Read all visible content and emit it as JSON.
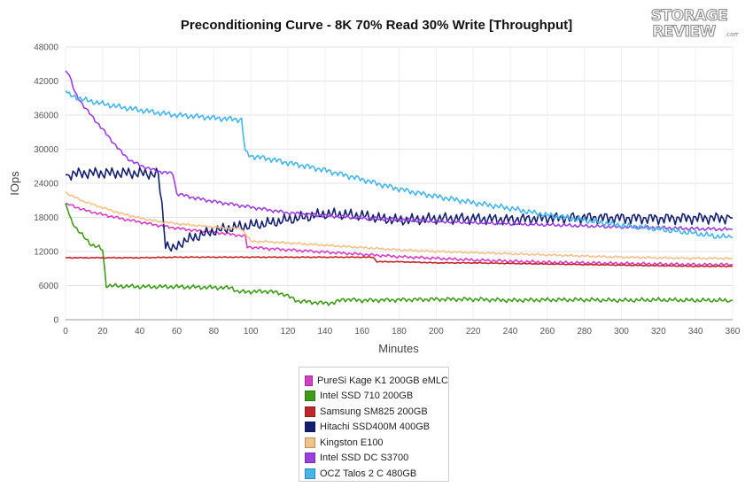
{
  "chart_data": {
    "type": "line",
    "title": "Preconditioning Curve - 8K 70% Read 30% Write [Throughput]",
    "xlabel": "Minutes",
    "ylabel": "IOps",
    "xlim": [
      0,
      360
    ],
    "ylim": [
      0,
      48000
    ],
    "x_ticks": [
      0,
      20,
      40,
      60,
      80,
      100,
      120,
      140,
      160,
      180,
      200,
      220,
      240,
      260,
      280,
      300,
      320,
      340,
      360
    ],
    "y_ticks": [
      0,
      6000,
      12000,
      18000,
      24000,
      30000,
      36000,
      42000,
      48000
    ],
    "grid": true,
    "legend_position": "bottom",
    "series": [
      {
        "name": "PureSi Kage K1 200GB eMLC",
        "color": "#d63fc4",
        "points": [
          [
            0,
            20500
          ],
          [
            10,
            19300
          ],
          [
            20,
            18500
          ],
          [
            30,
            17800
          ],
          [
            40,
            17200
          ],
          [
            50,
            16600
          ],
          [
            60,
            16100
          ],
          [
            70,
            15700
          ],
          [
            80,
            15400
          ],
          [
            90,
            15000
          ],
          [
            97,
            14700
          ],
          [
            98,
            12800
          ],
          [
            110,
            12500
          ],
          [
            120,
            12300
          ],
          [
            140,
            11900
          ],
          [
            160,
            11500
          ],
          [
            180,
            11100
          ],
          [
            200,
            10800
          ],
          [
            220,
            10500
          ],
          [
            240,
            10300
          ],
          [
            260,
            10100
          ],
          [
            280,
            10000
          ],
          [
            300,
            9900
          ],
          [
            320,
            9800
          ],
          [
            340,
            9700
          ],
          [
            360,
            9700
          ]
        ],
        "noise": 200
      },
      {
        "name": "Intel SSD 710 200GB",
        "color": "#3e9c1a",
        "points": [
          [
            0,
            20500
          ],
          [
            3,
            17500
          ],
          [
            6,
            16000
          ],
          [
            10,
            14500
          ],
          [
            14,
            13200
          ],
          [
            18,
            12700
          ],
          [
            20,
            12300
          ],
          [
            22,
            6000
          ],
          [
            40,
            5800
          ],
          [
            60,
            5800
          ],
          [
            90,
            5600
          ],
          [
            93,
            4900
          ],
          [
            110,
            5000
          ],
          [
            118,
            4500
          ],
          [
            125,
            3300
          ],
          [
            140,
            2900
          ],
          [
            145,
            3000
          ],
          [
            150,
            3600
          ],
          [
            160,
            3400
          ],
          [
            180,
            3500
          ],
          [
            200,
            3600
          ],
          [
            220,
            3600
          ],
          [
            240,
            3400
          ],
          [
            260,
            3500
          ],
          [
            280,
            3500
          ],
          [
            300,
            3400
          ],
          [
            320,
            3500
          ],
          [
            340,
            3400
          ],
          [
            360,
            3400
          ]
        ],
        "noise": 300
      },
      {
        "name": "Samsung SM825 200GB",
        "color": "#c0262a",
        "points": [
          [
            0,
            10900
          ],
          [
            20,
            10900
          ],
          [
            40,
            10900
          ],
          [
            60,
            11000
          ],
          [
            80,
            11000
          ],
          [
            100,
            11000
          ],
          [
            120,
            11000
          ],
          [
            140,
            11000
          ],
          [
            160,
            11000
          ],
          [
            166,
            11000
          ],
          [
            168,
            10200
          ],
          [
            180,
            10200
          ],
          [
            200,
            10000
          ],
          [
            220,
            10000
          ],
          [
            240,
            9900
          ],
          [
            260,
            9800
          ],
          [
            280,
            9700
          ],
          [
            300,
            9600
          ],
          [
            320,
            9500
          ],
          [
            340,
            9400
          ],
          [
            360,
            9400
          ]
        ],
        "noise": 60
      },
      {
        "name": "Hitachi SSD400M 400GB",
        "color": "#14206e",
        "points": [
          [
            0,
            25500
          ],
          [
            10,
            25800
          ],
          [
            20,
            25800
          ],
          [
            30,
            25800
          ],
          [
            40,
            25800
          ],
          [
            50,
            25600
          ],
          [
            52,
            20000
          ],
          [
            54,
            13500
          ],
          [
            58,
            12200
          ],
          [
            62,
            13500
          ],
          [
            70,
            14600
          ],
          [
            80,
            15600
          ],
          [
            90,
            16200
          ],
          [
            100,
            16600
          ],
          [
            110,
            17000
          ],
          [
            120,
            17600
          ],
          [
            130,
            18100
          ],
          [
            140,
            18600
          ],
          [
            150,
            18500
          ],
          [
            160,
            18300
          ],
          [
            170,
            17800
          ],
          [
            180,
            17500
          ],
          [
            200,
            17800
          ],
          [
            220,
            17800
          ],
          [
            240,
            17600
          ],
          [
            260,
            17900
          ],
          [
            280,
            18000
          ],
          [
            300,
            17900
          ],
          [
            320,
            17800
          ],
          [
            340,
            17900
          ],
          [
            360,
            17900
          ]
        ],
        "noise": 800
      },
      {
        "name": "Kingston E100",
        "color": "#f2c28a",
        "points": [
          [
            0,
            22500
          ],
          [
            2,
            22000
          ],
          [
            10,
            20800
          ],
          [
            20,
            19700
          ],
          [
            30,
            18700
          ],
          [
            40,
            17900
          ],
          [
            50,
            17300
          ],
          [
            60,
            16900
          ],
          [
            70,
            16600
          ],
          [
            80,
            16300
          ],
          [
            95,
            16000
          ],
          [
            100,
            13800
          ],
          [
            110,
            13700
          ],
          [
            120,
            13500
          ],
          [
            140,
            13100
          ],
          [
            160,
            12700
          ],
          [
            180,
            12300
          ],
          [
            200,
            12000
          ],
          [
            220,
            11800
          ],
          [
            240,
            11600
          ],
          [
            260,
            11400
          ],
          [
            280,
            11200
          ],
          [
            300,
            11000
          ],
          [
            320,
            10900
          ],
          [
            340,
            10800
          ],
          [
            360,
            10800
          ]
        ],
        "noise": 150
      },
      {
        "name": "Intel SSD DC S3700",
        "color": "#9b3fe0",
        "points": [
          [
            0,
            43800
          ],
          [
            2,
            43000
          ],
          [
            5,
            40000
          ],
          [
            10,
            37500
          ],
          [
            15,
            35500
          ],
          [
            20,
            33500
          ],
          [
            25,
            31500
          ],
          [
            30,
            29500
          ],
          [
            35,
            28000
          ],
          [
            40,
            27200
          ],
          [
            45,
            26600
          ],
          [
            50,
            26100
          ],
          [
            58,
            25700
          ],
          [
            60,
            22200
          ],
          [
            70,
            21400
          ],
          [
            80,
            20800
          ],
          [
            90,
            20300
          ],
          [
            100,
            19800
          ],
          [
            110,
            19300
          ],
          [
            120,
            18800
          ],
          [
            140,
            18300
          ],
          [
            160,
            17900
          ],
          [
            180,
            17600
          ],
          [
            200,
            17300
          ],
          [
            220,
            17100
          ],
          [
            240,
            16900
          ],
          [
            260,
            16700
          ],
          [
            280,
            16500
          ],
          [
            300,
            16300
          ],
          [
            320,
            16200
          ],
          [
            340,
            16000
          ],
          [
            360,
            15900
          ]
        ],
        "noise": 250
      },
      {
        "name": "OCZ Talos 2 C 480GB",
        "color": "#45b5ea",
        "points": [
          [
            0,
            40300
          ],
          [
            2,
            39500
          ],
          [
            10,
            38700
          ],
          [
            20,
            38000
          ],
          [
            30,
            37400
          ],
          [
            40,
            36900
          ],
          [
            50,
            36400
          ],
          [
            60,
            36000
          ],
          [
            70,
            35800
          ],
          [
            80,
            35500
          ],
          [
            90,
            35300
          ],
          [
            95,
            35200
          ],
          [
            97,
            29500
          ],
          [
            100,
            28800
          ],
          [
            110,
            28300
          ],
          [
            120,
            27600
          ],
          [
            130,
            27000
          ],
          [
            140,
            26300
          ],
          [
            150,
            25500
          ],
          [
            160,
            24700
          ],
          [
            170,
            23800
          ],
          [
            180,
            23000
          ],
          [
            190,
            22300
          ],
          [
            200,
            21700
          ],
          [
            220,
            20600
          ],
          [
            240,
            19600
          ],
          [
            260,
            18400
          ],
          [
            280,
            17500
          ],
          [
            300,
            16600
          ],
          [
            320,
            15900
          ],
          [
            340,
            15200
          ],
          [
            350,
            14700
          ],
          [
            360,
            14500
          ]
        ],
        "noise": 400
      }
    ]
  },
  "legend": {
    "items": [
      {
        "label": "PureSi Kage K1 200GB eMLC",
        "color": "#d63fc4"
      },
      {
        "label": "Intel SSD 710 200GB",
        "color": "#3e9c1a"
      },
      {
        "label": "Samsung SM825 200GB",
        "color": "#c0262a"
      },
      {
        "label": "Hitachi SSD400M 400GB",
        "color": "#14206e"
      },
      {
        "label": "Kingston E100",
        "color": "#f2c28a"
      },
      {
        "label": "Intel SSD DC S3700",
        "color": "#9b3fe0"
      },
      {
        "label": "OCZ Talos 2 C 480GB",
        "color": "#45b5ea"
      }
    ]
  },
  "logo": {
    "line1": "STORAGE",
    "line2": "REVIEW",
    "suffix": ".com"
  }
}
